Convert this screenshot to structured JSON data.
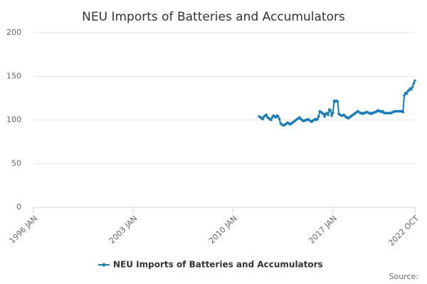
{
  "chart_data": {
    "type": "line",
    "title": "NEU Imports of Batteries and Accumulators",
    "source": "Source:",
    "x": [
      "2011 NOV",
      "2011 DEC",
      "2012 JAN",
      "2012 FEB",
      "2012 MAR",
      "2012 APR",
      "2012 MAY",
      "2012 JUN",
      "2012 JUL",
      "2012 AUG",
      "2012 SEP",
      "2012 OCT",
      "2012 NOV",
      "2012 DEC",
      "2013 JAN",
      "2013 FEB",
      "2013 MAR",
      "2013 APR",
      "2013 MAY",
      "2013 JUN",
      "2013 JUL",
      "2013 AUG",
      "2013 SEP",
      "2013 OCT",
      "2013 NOV",
      "2013 DEC",
      "2014 JAN",
      "2014 FEB",
      "2014 MAR",
      "2014 APR",
      "2014 MAY",
      "2014 JUN",
      "2014 JUL",
      "2014 AUG",
      "2014 SEP",
      "2014 OCT",
      "2014 NOV",
      "2014 DEC",
      "2015 JAN",
      "2015 FEB",
      "2015 MAR",
      "2015 APR",
      "2015 MAY",
      "2015 JUN",
      "2015 JUL",
      "2015 AUG",
      "2015 SEP",
      "2015 OCT",
      "2015 NOV",
      "2015 DEC",
      "2016 JAN",
      "2016 FEB",
      "2016 MAR",
      "2016 APR",
      "2016 MAY",
      "2016 JUN",
      "2016 JUL",
      "2016 AUG",
      "2016 SEP",
      "2016 OCT",
      "2016 NOV",
      "2016 DEC",
      "2017 JAN",
      "2017 FEB",
      "2017 MAR",
      "2017 APR",
      "2017 MAY",
      "2017 JUN",
      "2017 JUL",
      "2017 AUG",
      "2017 SEP",
      "2017 OCT",
      "2017 NOV",
      "2017 DEC",
      "2018 JAN",
      "2018 FEB",
      "2018 MAR",
      "2018 APR",
      "2018 MAY",
      "2018 JUN",
      "2018 JUL",
      "2018 AUG",
      "2018 SEP",
      "2018 OCT",
      "2018 NOV",
      "2018 DEC",
      "2019 JAN",
      "2019 FEB",
      "2019 MAR",
      "2019 APR",
      "2019 MAY",
      "2019 JUN",
      "2019 JUL",
      "2019 AUG",
      "2019 SEP",
      "2019 OCT",
      "2019 NOV",
      "2019 DEC",
      "2020 JAN",
      "2020 FEB",
      "2020 MAR",
      "2020 APR",
      "2020 MAY",
      "2020 JUN",
      "2020 JUL",
      "2020 AUG",
      "2020 SEP",
      "2020 OCT",
      "2020 NOV",
      "2020 DEC",
      "2021 JAN",
      "2021 FEB",
      "2021 MAR",
      "2021 APR",
      "2021 MAY",
      "2021 JUN",
      "2021 JUL",
      "2021 AUG",
      "2021 SEP",
      "2021 OCT",
      "2021 NOV",
      "2021 DEC",
      "2022 JAN",
      "2022 FEB",
      "2022 MAR",
      "2022 APR",
      "2022 MAY",
      "2022 JUN",
      "2022 JUL",
      "2022 AUG",
      "2022 SEP",
      "2022 OCT"
    ],
    "series": [
      {
        "name": "NEU Imports of Batteries and Accumulators",
        "color": "#1a7db8",
        "values": [
          104,
          103,
          102,
          101,
          104,
          105,
          106,
          103,
          102,
          101,
          100,
          103,
          105,
          104,
          103,
          105,
          104,
          101,
          96,
          95,
          94,
          94,
          95,
          96,
          97,
          96,
          95,
          96,
          97,
          98,
          99,
          100,
          101,
          102,
          103,
          101,
          100,
          99,
          99,
          100,
          100,
          101,
          100,
          99,
          98,
          99,
          100,
          101,
          100,
          101,
          104,
          110,
          109,
          108,
          107,
          104,
          107,
          108,
          106,
          112,
          111,
          105,
          108,
          122,
          121,
          122,
          121,
          107,
          106,
          105,
          105,
          106,
          105,
          103,
          103,
          102,
          103,
          104,
          105,
          106,
          107,
          108,
          109,
          110,
          109,
          108,
          108,
          107,
          108,
          108,
          109,
          109,
          108,
          108,
          107,
          108,
          108,
          109,
          109,
          110,
          111,
          110,
          110,
          109,
          110,
          108,
          108,
          108,
          108,
          108,
          108,
          108,
          109,
          109,
          110,
          110,
          110,
          110,
          110,
          110,
          110,
          109,
          128,
          131,
          130,
          133,
          134,
          136,
          135,
          138,
          142,
          145
        ]
      }
    ],
    "xlim": [
      "1996 JAN",
      "2022 OCT"
    ],
    "xticks": [
      "1996 JAN",
      "2003 JAN",
      "2010 JAN",
      "2017 JAN",
      "2022 OCT"
    ],
    "ylim": [
      0,
      200
    ],
    "yticks": [
      0,
      50,
      100,
      150,
      200
    ],
    "grid": true
  }
}
